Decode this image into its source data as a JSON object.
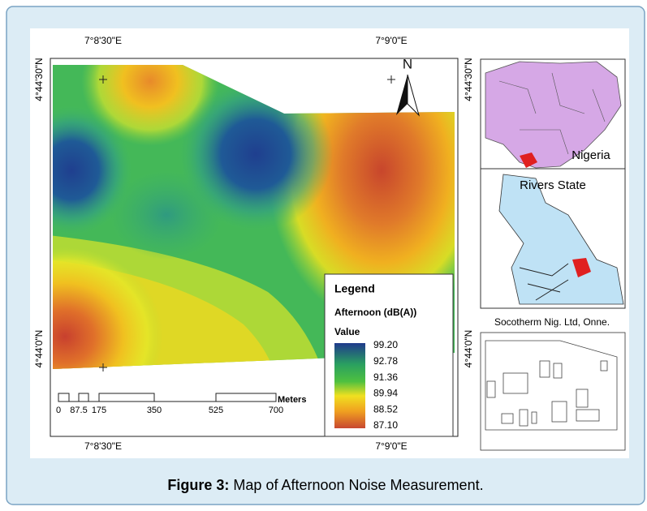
{
  "map": {
    "coordinates": {
      "top": [
        "7°8'30\"E",
        "7°9'0\"E"
      ],
      "bottom": [
        "7°8'30\"E",
        "7°9'0\"E"
      ],
      "left": [
        "4°44'30\"N",
        "4°44'0\"N"
      ],
      "right": [
        "4°44'30\"N",
        "4°44'0\"N"
      ]
    },
    "north": "N",
    "legend": {
      "title": "Legend",
      "layer": "Afternoon (dB(A))",
      "field": "Value",
      "values": [
        "99.20",
        "92.78",
        "91.36",
        "89.94",
        "88.52",
        "87.10"
      ]
    },
    "scale": {
      "labels": [
        "0",
        "87.5",
        "175",
        "350",
        "525",
        "700"
      ],
      "unit": "Meters"
    }
  },
  "insets": {
    "nigeria": "Nigeria",
    "rivers": "Rivers State",
    "site": "Socotherm Nig. Ltd, Onne."
  },
  "caption": {
    "label": "Figure 3:",
    "text": "Map of Afternoon Noise Measurement."
  }
}
